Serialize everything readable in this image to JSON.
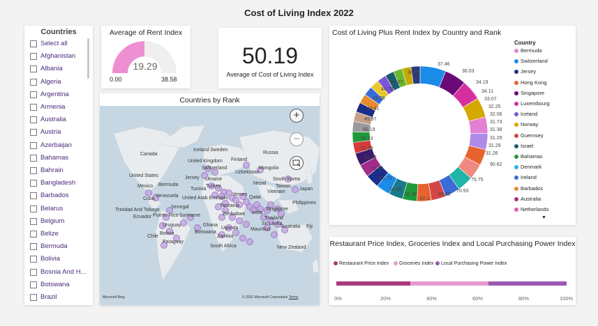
{
  "title": "Cost of Living Index 2022",
  "slicer": {
    "title": "Countries",
    "items": [
      "Select all",
      "Afghanistan",
      "Albania",
      "Algeria",
      "Argentina",
      "Armenia",
      "Australia",
      "Austria",
      "Azerbaijan",
      "Bahamas",
      "Bahrain",
      "Bangladesh",
      "Barbados",
      "Belarus",
      "Belgium",
      "Belize",
      "Bermuda",
      "Bolivia",
      "Bosnia And H...",
      "Botswana",
      "Brazil"
    ]
  },
  "rent_gauge": {
    "title": "Average of Rent Index",
    "value": "19.29",
    "min": "0.00",
    "max": "38.58",
    "fill_fraction": 0.5
  },
  "cost_card": {
    "value": "50.19",
    "label": "Average of Cost of Living Index"
  },
  "map": {
    "title": "Countries by Rank",
    "countries": [
      "Iceland",
      "Sweden",
      "Finland",
      "Canada",
      "United Kingdom",
      "Switzerland",
      "Russia",
      "Uzbekistan",
      "Mongolia",
      "United States",
      "Jersey",
      "Ukraine",
      "Nepal",
      "South Korea",
      "Mexico",
      "Bermuda",
      "Tunisia",
      "Turkey",
      "Taiwan",
      "Japan",
      "Cuba",
      "Venezuela",
      "United Arab Emirates",
      "Yemen",
      "Qatar",
      "Vietnam",
      "Trinidad And Tobago",
      "Senegal",
      "Tanzania",
      "Philippines",
      "Ecuador",
      "Puerto Rico",
      "Zimbabwe",
      "India",
      "Singapore",
      "Uruguay",
      "Ghana",
      "Uganda",
      "Sri Lanka",
      "Chile",
      "Bolivia",
      "Botswana",
      "Zambia",
      "Mauritius",
      "Thailand",
      "Australia",
      "Fiji",
      "Paraguay",
      "Suriname",
      "South Africa",
      "New Zealand"
    ],
    "copyright": "© 2022 Microsoft Corporation",
    "terms": "Terms",
    "logo": "Microsoft Bing",
    "zoom_in_icon": "+",
    "zoom_out_icon": "−",
    "select_icon": "lasso-select-icon"
  },
  "donut": {
    "title": "Cost of Living Plus Rent Index by Country and Rank",
    "legend_title": "Country",
    "legend": [
      {
        "name": "Bermuda",
        "color": "#e37fd4"
      },
      {
        "name": "Switzerland",
        "color": "#1b8be8"
      },
      {
        "name": "Jersey",
        "color": "#1a2e8a"
      },
      {
        "name": "Hong Kong",
        "color": "#e8622d"
      },
      {
        "name": "Singapore",
        "color": "#6a0a78"
      },
      {
        "name": "Luxembourg",
        "color": "#d630a0"
      },
      {
        "name": "Iceland",
        "color": "#7a55d6"
      },
      {
        "name": "Norway",
        "color": "#d4a800"
      },
      {
        "name": "Guernsey",
        "color": "#d64545"
      },
      {
        "name": "Israel",
        "color": "#1a5e6e"
      },
      {
        "name": "Bahamas",
        "color": "#1f9a3a"
      },
      {
        "name": "Denmark",
        "color": "#2bb5e8"
      },
      {
        "name": "Ireland",
        "color": "#3a6bd6"
      },
      {
        "name": "Barbados",
        "color": "#e88a2d"
      },
      {
        "name": "Australia",
        "color": "#a32c8a"
      },
      {
        "name": "Netherlands",
        "color": "#e85ab0"
      }
    ],
    "labels": [
      "37.46",
      "36.03",
      "34.19",
      "34.11",
      "33.07",
      "32.25",
      "32.06",
      "31.73",
      "31.38",
      "31.29",
      "31.29",
      "31.26",
      "90.62",
      "75.75",
      "70.93",
      "69.86",
      "57.1",
      "56.98",
      "55.96",
      "55.73",
      "55.65",
      "51.93",
      "51.28",
      "50.23",
      "50.19",
      "49.97",
      "48.61",
      "48.28",
      "44.78",
      "43.97",
      "38.58"
    ]
  },
  "chart_data": {
    "type": "pie",
    "title": "Cost of Living Plus Rent Index by Country and Rank",
    "values": [
      90.62,
      75.75,
      70.93,
      69.86,
      57.1,
      56.98,
      55.96,
      55.73,
      55.65,
      51.93,
      51.28,
      50.23,
      50.19,
      49.97,
      48.61,
      48.28,
      44.78,
      43.97,
      38.58,
      37.46,
      36.03,
      34.19,
      34.11,
      33.07,
      32.25,
      32.06,
      31.73,
      31.38,
      31.29,
      31.29,
      31.26
    ],
    "colors": [
      "#1b8be8",
      "#6a0a78",
      "#d630a0",
      "#d4a800",
      "#e37fd4",
      "#b08ae8",
      "#e8622d",
      "#f08a80",
      "#1fb5a8",
      "#3a6bd6",
      "#d64545",
      "#e8622d",
      "#1f9a3a",
      "#1a7a8a",
      "#1b8be8",
      "#1a2e8a",
      "#a32c8a",
      "#3a1a6a",
      "#d63a3a",
      "#1f9a3a",
      "#9a9a9a",
      "#c8a08a",
      "#1a2e8a",
      "#e88a2d",
      "#3a6bd6",
      "#e8c82d",
      "#7a55d6",
      "#1a5e6e",
      "#6ab82d",
      "#c8a800",
      "#2d3a7a"
    ],
    "legend_position": "right"
  },
  "restaurant": {
    "title": "Restaurant Price Index, Groceries Index and Local Purchasing Power Index",
    "legend": [
      {
        "name": "Restaurant Price Index",
        "color": "#a83a7a"
      },
      {
        "name": "Groceries Index",
        "color": "#e89ad0"
      },
      {
        "name": "Local Purchasing Power Index",
        "color": "#9a5ab0"
      }
    ],
    "segments_percent": [
      32,
      34,
      34
    ],
    "ticks": [
      "0%",
      "20%",
      "40%",
      "60%",
      "80%",
      "100%"
    ]
  }
}
